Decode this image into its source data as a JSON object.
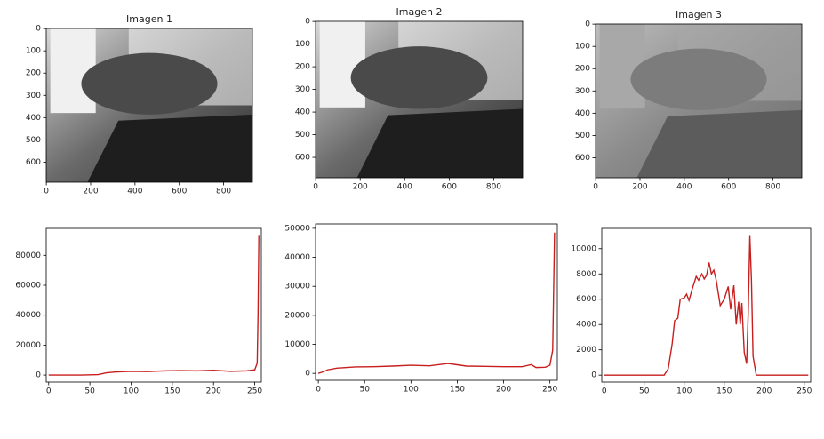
{
  "chart_data": [
    {
      "type": "image",
      "title": "Imagen 1",
      "xlim": [
        -0.5,
        930
      ],
      "ylim": [
        690,
        -0.5
      ],
      "xticks": [
        0,
        200,
        400,
        600,
        800
      ],
      "yticks": [
        0,
        100,
        200,
        300,
        400,
        500,
        600
      ]
    },
    {
      "type": "image",
      "title": "Imagen 2",
      "xlim": [
        -0.5,
        930
      ],
      "ylim": [
        690,
        -0.5
      ],
      "xticks": [
        0,
        200,
        400,
        600,
        800
      ],
      "yticks": [
        0,
        100,
        200,
        300,
        400,
        500,
        600
      ]
    },
    {
      "type": "image",
      "title": "Imagen 3",
      "xlim": [
        -0.5,
        930
      ],
      "ylim": [
        690,
        -0.5
      ],
      "xticks": [
        0,
        200,
        400,
        600,
        800
      ],
      "yticks": [
        0,
        100,
        200,
        300,
        400,
        500,
        600
      ]
    },
    {
      "type": "line",
      "x": [
        0,
        20,
        40,
        60,
        70,
        80,
        100,
        120,
        140,
        160,
        180,
        200,
        220,
        240,
        250,
        253,
        254,
        255
      ],
      "series": [
        {
          "color": "#c81e1e",
          "values": [
            0,
            0,
            0,
            300,
            1500,
            2000,
            2500,
            2300,
            2800,
            3000,
            2800,
            3200,
            2500,
            2800,
            3500,
            8000,
            40000,
            93000
          ]
        }
      ],
      "xlim": [
        -3,
        258
      ],
      "ylim": [
        -4700,
        98000
      ],
      "xticks": [
        0,
        50,
        100,
        150,
        200,
        250
      ],
      "yticks": [
        0,
        20000,
        40000,
        60000,
        80000
      ]
    },
    {
      "type": "line",
      "x": [
        0,
        5,
        10,
        20,
        40,
        60,
        80,
        100,
        120,
        140,
        160,
        180,
        200,
        220,
        230,
        235,
        245,
        250,
        253,
        255
      ],
      "series": [
        {
          "color": "#c81e1e",
          "values": [
            0,
            500,
            1200,
            1800,
            2200,
            2300,
            2500,
            2800,
            2600,
            3400,
            2500,
            2400,
            2300,
            2300,
            3000,
            2000,
            2100,
            2800,
            8000,
            48500
          ]
        }
      ],
      "xlim": [
        -3,
        258
      ],
      "ylim": [
        -2400,
        51500
      ],
      "xticks": [
        0,
        50,
        100,
        150,
        200,
        250
      ],
      "yticks": [
        0,
        10000,
        20000,
        30000,
        40000,
        50000
      ]
    },
    {
      "type": "line",
      "x": [
        0,
        75,
        80,
        85,
        88,
        92,
        95,
        100,
        103,
        106,
        110,
        115,
        118,
        122,
        125,
        128,
        131,
        134,
        137,
        140,
        145,
        150,
        155,
        158,
        162,
        165,
        168,
        170,
        172,
        175,
        178,
        180,
        182,
        184,
        186,
        190,
        255
      ],
      "series": [
        {
          "color": "#c81e1e",
          "values": [
            0,
            0,
            500,
            2500,
            4300,
            4500,
            6000,
            6100,
            6400,
            5900,
            6800,
            7800,
            7500,
            8000,
            7600,
            7900,
            8900,
            8000,
            8300,
            7500,
            5500,
            6000,
            7000,
            5200,
            7100,
            4000,
            5800,
            4000,
            5700,
            1800,
            900,
            5000,
            11000,
            7500,
            1500,
            0,
            0
          ]
        }
      ],
      "xlim": [
        -3,
        258
      ],
      "ylim": [
        -550,
        11600
      ],
      "xticks": [
        0,
        50,
        100,
        150,
        200,
        250
      ],
      "yticks": [
        0,
        2000,
        4000,
        6000,
        8000,
        10000
      ]
    }
  ]
}
